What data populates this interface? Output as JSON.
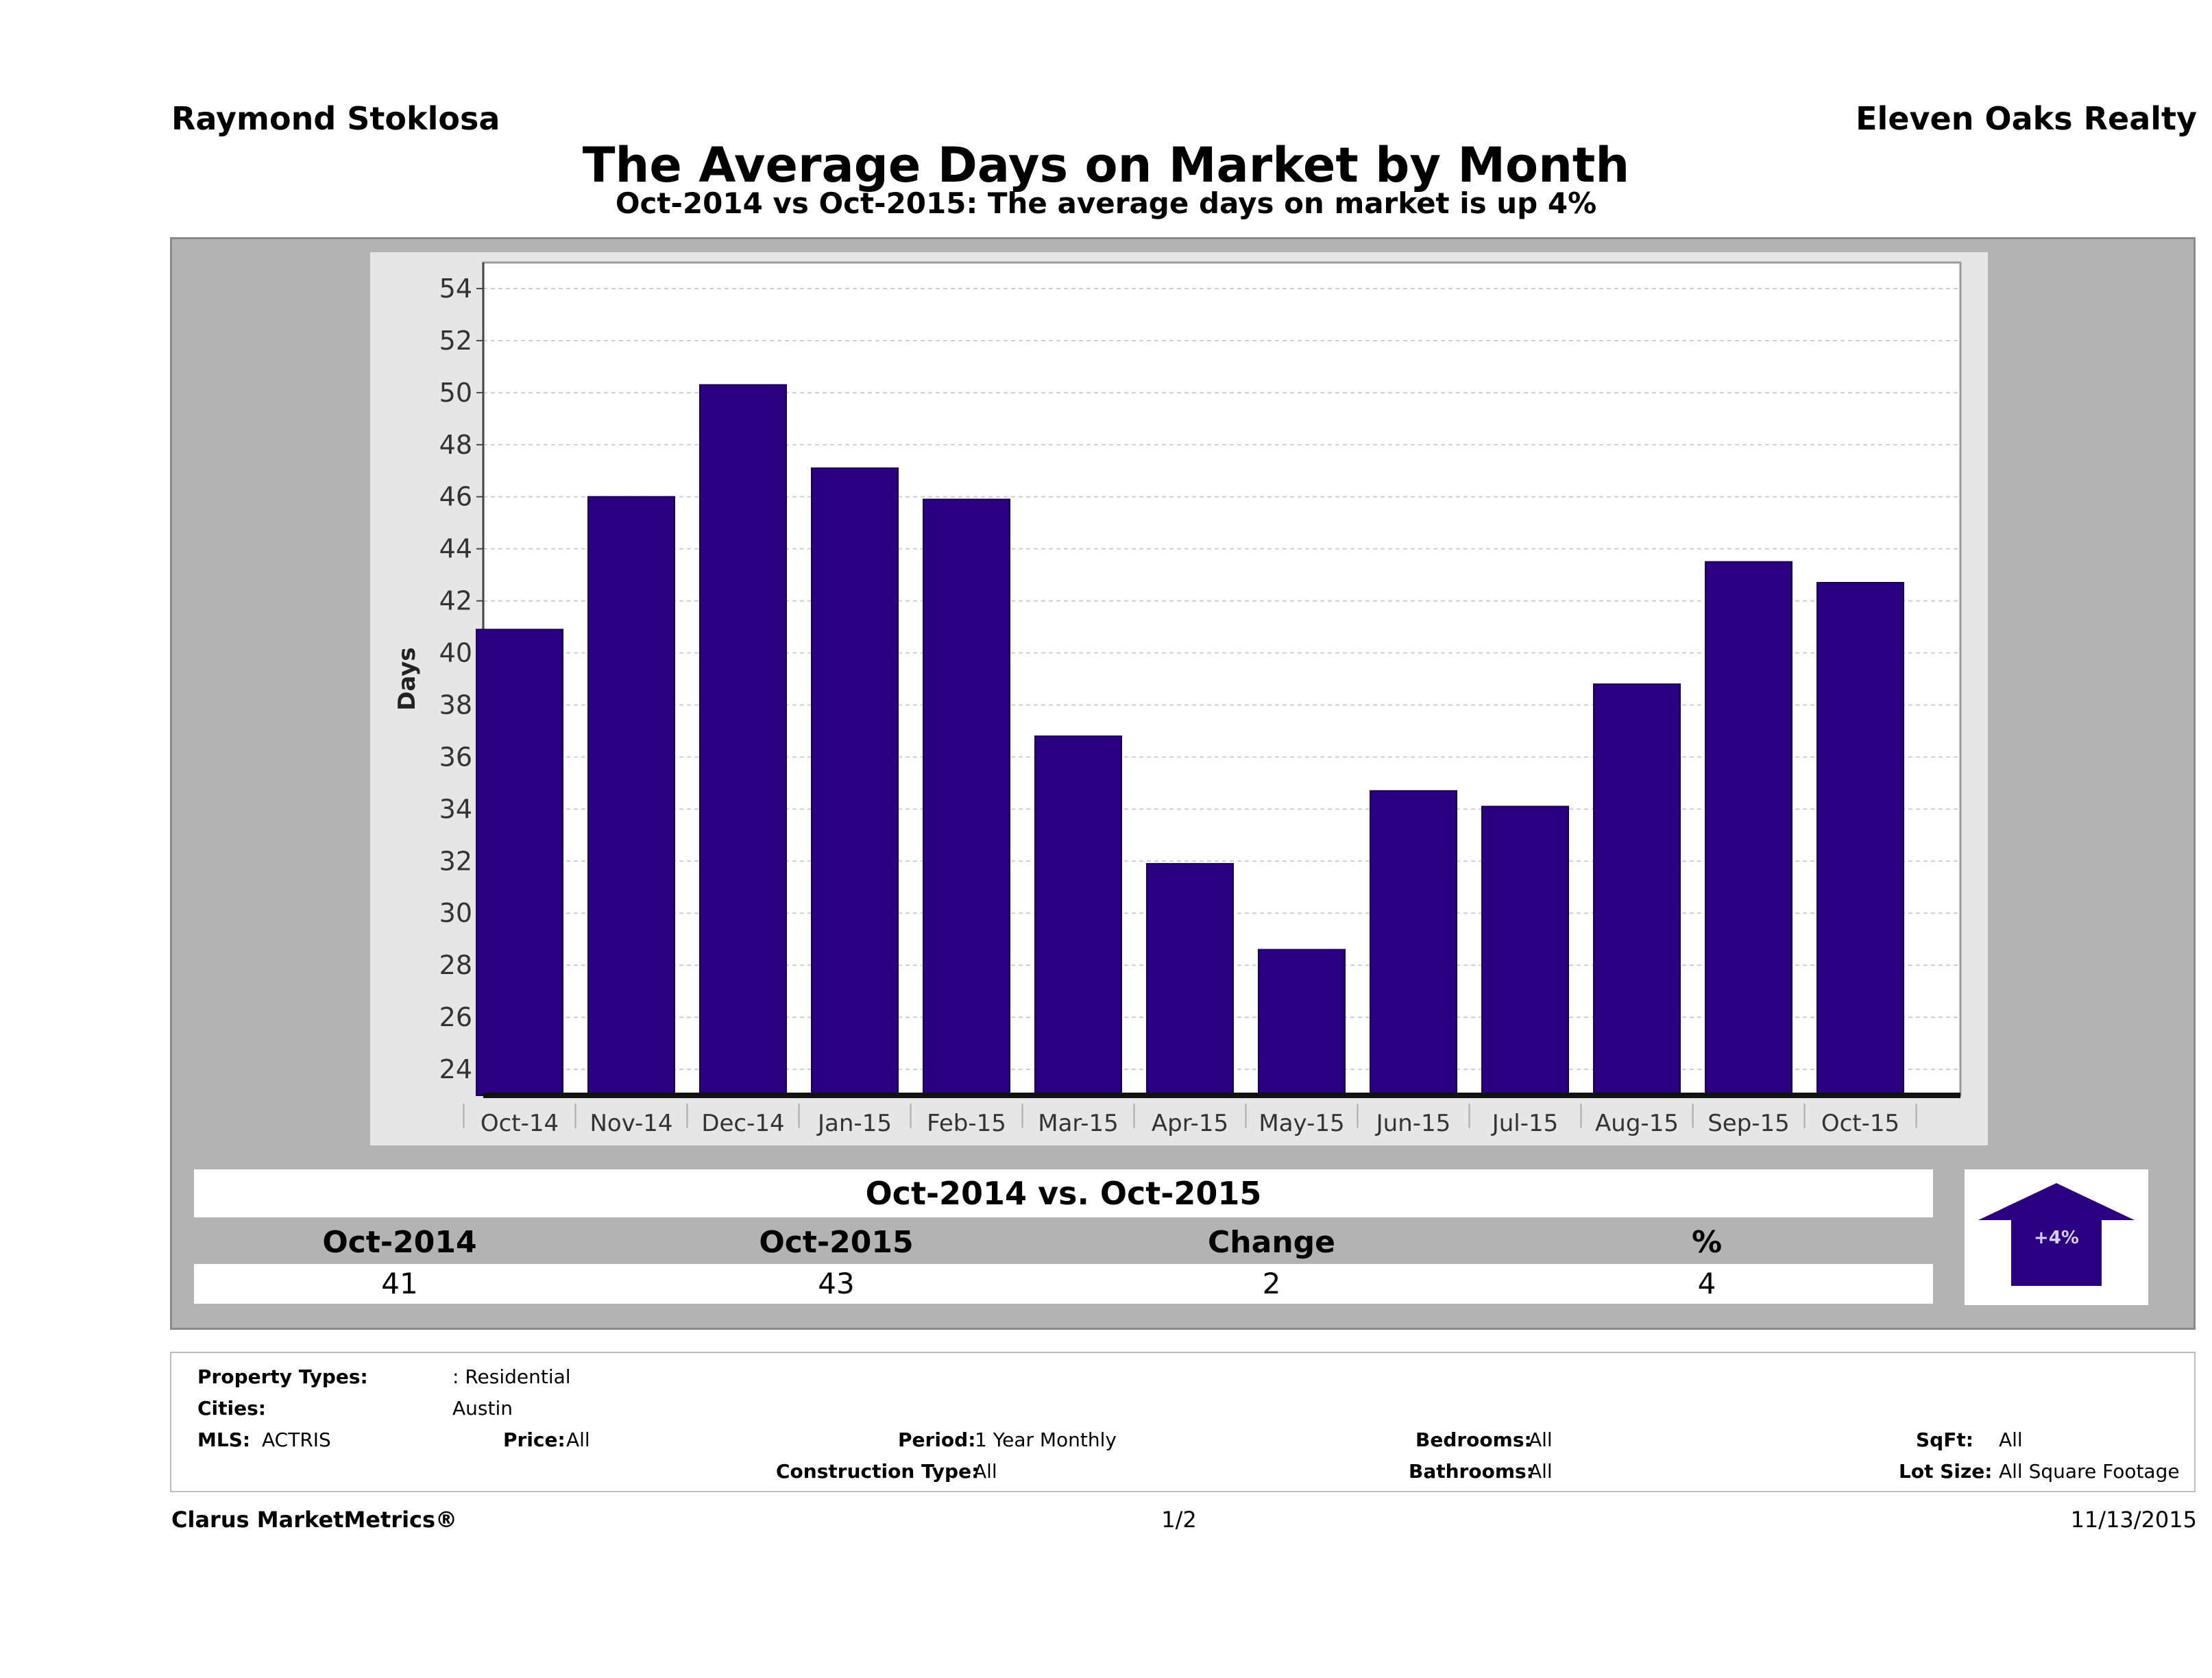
{
  "header": {
    "agent": "Raymond Stoklosa",
    "brokerage": "Eleven Oaks Realty",
    "title": "The Average Days on Market by Month",
    "subtitle": "Oct-2014 vs Oct-2015: The average days on market is up 4%"
  },
  "chart_data": {
    "type": "bar",
    "categories": [
      "Oct-14",
      "Nov-14",
      "Dec-14",
      "Jan-15",
      "Feb-15",
      "Mar-15",
      "Apr-15",
      "May-15",
      "Jun-15",
      "Jul-15",
      "Aug-15",
      "Sep-15",
      "Oct-15"
    ],
    "values": [
      40.9,
      46.0,
      50.3,
      47.1,
      45.9,
      36.8,
      31.9,
      28.6,
      34.7,
      34.1,
      38.8,
      43.5,
      42.7
    ],
    "ylabel": "Days",
    "xlabel": "",
    "ylim": [
      23,
      55
    ],
    "yticks": [
      24,
      26,
      28,
      30,
      32,
      34,
      36,
      38,
      40,
      42,
      44,
      46,
      48,
      50,
      52,
      54
    ],
    "grid": true,
    "bar_color": "#2a0080"
  },
  "comparison": {
    "title": "Oct-2014 vs. Oct-2015",
    "headers": [
      "Oct-2014",
      "Oct-2015",
      "Change",
      "%"
    ],
    "values": [
      "41",
      "43",
      "2",
      "4"
    ],
    "badge": "+4%"
  },
  "filters": {
    "property_types_label": "Property Types:",
    "property_types_value": ": Residential",
    "cities_label": "Cities:",
    "cities_value": "Austin",
    "mls_label": "MLS:",
    "mls_value": "ACTRIS",
    "price_label": "Price:",
    "price_value": "All",
    "period_label": "Period:",
    "period_value": "1 Year Monthly",
    "construction_label": "Construction Type:",
    "construction_value": "All",
    "bedrooms_label": "Bedrooms:",
    "bedrooms_value": "All",
    "bathrooms_label": "Bathrooms:",
    "bathrooms_value": "All",
    "sqft_label": "SqFt:",
    "sqft_value": "All",
    "lotsize_label": "Lot Size:",
    "lotsize_value": "All Square Footage"
  },
  "footer": {
    "brand": "Clarus MarketMetrics®",
    "page": "1/2",
    "date": "11/13/2015"
  }
}
